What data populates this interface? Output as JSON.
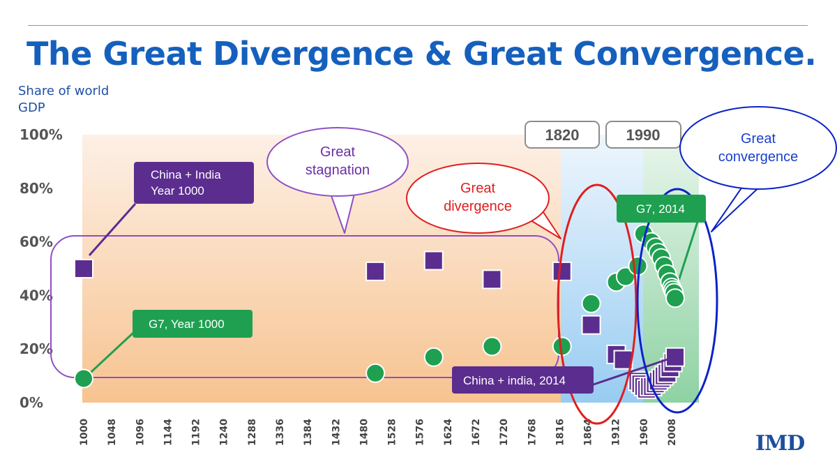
{
  "title": "The Great Divergence & Great Convergence.",
  "logo": "IMD",
  "chart_data": {
    "type": "scatter",
    "ylabel": "Share of world GDP",
    "ylim": [
      0,
      100
    ],
    "yticks": [
      "0%",
      "20%",
      "40%",
      "60%",
      "80%",
      "100%"
    ],
    "xticks": [
      "1000",
      "1048",
      "1096",
      "1144",
      "1192",
      "1240",
      "1288",
      "1336",
      "1384",
      "1432",
      "1480",
      "1528",
      "1576",
      "1624",
      "1672",
      "1720",
      "1768",
      "1816",
      "1864",
      "1912",
      "1960",
      "2008"
    ],
    "series": [
      {
        "name": "China + India",
        "marker": "square",
        "color": "#5b2d8e",
        "x": [
          1000,
          1500,
          1600,
          1700,
          1820,
          1870,
          1913,
          1925,
          1950,
          1955,
          1960,
          1965,
          1970,
          1975,
          1980,
          1985,
          1990,
          1995,
          2000,
          2005,
          2010,
          2014
        ],
        "y": [
          50,
          49,
          53,
          46,
          49,
          29,
          18,
          16,
          8,
          7,
          6,
          5,
          6,
          6,
          7,
          8,
          9,
          10,
          11,
          13,
          15,
          17
        ]
      },
      {
        "name": "G7",
        "marker": "circle",
        "color": "#1ea050",
        "x": [
          1000,
          1500,
          1600,
          1700,
          1820,
          1870,
          1913,
          1929,
          1950,
          1960,
          1973,
          1980,
          1985,
          1990,
          1995,
          2000,
          2005,
          2008,
          2010,
          2012,
          2014
        ],
        "y": [
          9,
          11,
          17,
          21,
          21,
          37,
          45,
          47,
          51,
          63,
          60,
          58,
          56,
          54,
          51,
          48,
          45,
          43,
          42,
          41,
          39
        ]
      }
    ],
    "callouts": {
      "china_india_1000": {
        "line1": "China + India",
        "line2": "Year 1000"
      },
      "g7_1000": "G7, Year 1000",
      "china_india_2014": "China + india, 2014",
      "g7_2014": "G7, 2014",
      "stagnation": {
        "line1": "Great",
        "line2": "stagnation"
      },
      "divergence": {
        "line1": "Great",
        "line2": "divergence"
      },
      "convergence": {
        "line1": "Great",
        "line2": "convergence"
      },
      "year_1820": "1820",
      "year_1990": "1990"
    },
    "colors": {
      "purple": "#5b2d8e",
      "green": "#1ea050",
      "red": "#e01e1e",
      "blue": "#0a22c8",
      "stagnation_outline": "#8e4fc4"
    }
  }
}
